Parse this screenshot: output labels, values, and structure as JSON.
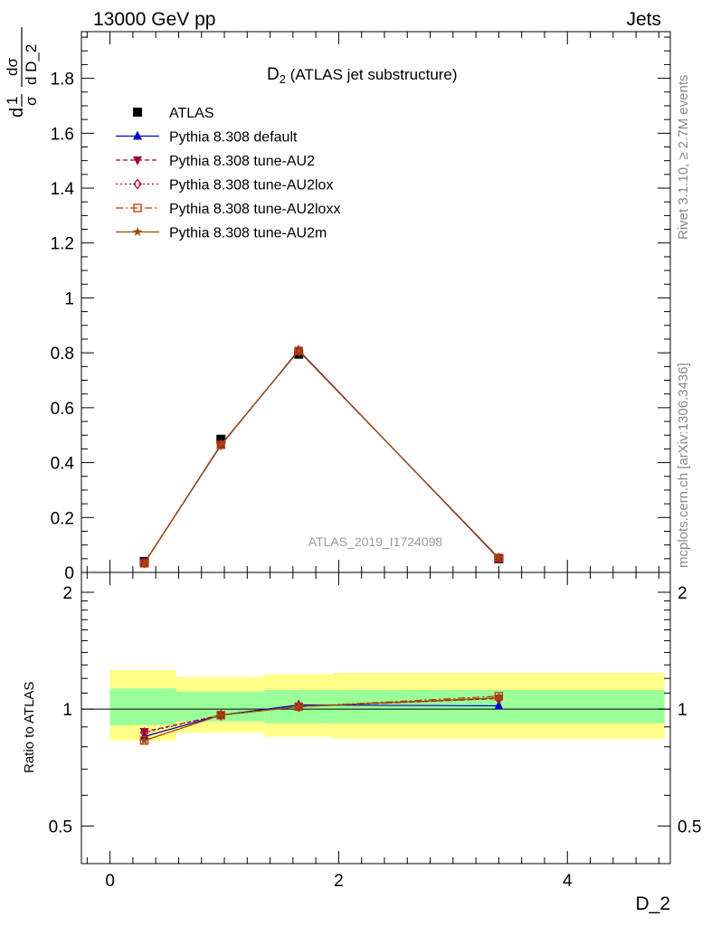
{
  "header": {
    "left": "13000 GeV pp",
    "right": "Jets"
  },
  "side_texts": {
    "rivet": "Rivet 3.1.10, ≥ 2.7M events",
    "mcplots": "mcplots.cern.ch [arXiv:1306.3436]"
  },
  "chart_data": [
    {
      "type": "line",
      "panel": "main",
      "title": "D₂ (ATLAS jet substructure)",
      "title_main": "D",
      "title_sub": "2",
      "title_rest": " (ATLAS jet substructure)",
      "ylabel": "1/σ dσ/d D_2",
      "ylabel_parts": {
        "num1": "1",
        "den1": "σ",
        "num2": "dσ",
        "den2": "d D_2",
        "d": "d"
      },
      "watermark": "ATLAS_2019_I1724098",
      "xlim": [
        -0.25,
        4.9
      ],
      "ylim": [
        0,
        1.97
      ],
      "yticks": [
        0,
        0.2,
        0.4,
        0.6,
        0.8,
        1,
        1.2,
        1.4,
        1.6,
        1.8
      ],
      "ytick_labels": [
        "0",
        "0.2",
        "0.4",
        "0.6",
        "0.8",
        "1",
        "1.2",
        "1.4",
        "1.6",
        "1.8"
      ],
      "x": [
        0.3,
        0.97,
        1.65,
        3.4
      ],
      "series": [
        {
          "name": "ATLAS",
          "values": [
            0.04,
            0.485,
            0.795,
            0.05
          ],
          "color": "#000000",
          "marker": "square-filled",
          "dash": "",
          "is_data": true
        },
        {
          "name": "Pythia 8.308 default",
          "values": [
            0.034,
            0.463,
            0.81,
            0.05
          ],
          "color": "#0000cc",
          "marker": "triangle-filled",
          "dash": ""
        },
        {
          "name": "Pythia 8.308 tune-AU2",
          "values": [
            0.035,
            0.465,
            0.807,
            0.052
          ],
          "color": "#990033",
          "marker": "triangle-down-filled",
          "dash": "5,3"
        },
        {
          "name": "Pythia 8.308 tune-AU2lox",
          "values": [
            0.035,
            0.465,
            0.807,
            0.052
          ],
          "color": "#b00040",
          "marker": "diamond-open",
          "dash": "2,3"
        },
        {
          "name": "Pythia 8.308 tune-AU2loxx",
          "values": [
            0.033,
            0.465,
            0.807,
            0.053
          ],
          "color": "#cc3300",
          "marker": "square-open",
          "dash": "8,3,2,3"
        },
        {
          "name": "Pythia 8.308 tune-AU2m",
          "values": [
            0.033,
            0.465,
            0.807,
            0.053
          ],
          "color": "#994d00",
          "marker": "star",
          "dash": ""
        }
      ]
    },
    {
      "type": "line",
      "panel": "ratio",
      "ylabel": "Ratio to ATLAS",
      "xlabel": "D_2",
      "xlim": [
        -0.25,
        4.9
      ],
      "ylim": [
        0.4,
        2.25
      ],
      "xticks": [
        0,
        2,
        4
      ],
      "xtick_labels": [
        "0",
        "2",
        "4"
      ],
      "yticks": [
        0.5,
        1,
        2
      ],
      "ytick_labels": [
        "0.5",
        "1",
        "2"
      ],
      "bins": [
        {
          "x0": 0.0,
          "x1": 0.58,
          "band1": [
            0.91,
            1.13
          ],
          "band2": [
            0.83,
            1.26
          ]
        },
        {
          "x0": 0.58,
          "x1": 1.35,
          "band1": [
            0.93,
            1.11
          ],
          "band2": [
            0.87,
            1.21
          ]
        },
        {
          "x0": 1.35,
          "x1": 1.95,
          "band1": [
            0.92,
            1.12
          ],
          "band2": [
            0.85,
            1.23
          ]
        },
        {
          "x0": 1.95,
          "x1": 4.85,
          "band1": [
            0.92,
            1.12
          ],
          "band2": [
            0.84,
            1.24
          ]
        }
      ],
      "band_colors": {
        "inner": "#99ff99",
        "outer": "#ffff88"
      },
      "x": [
        0.3,
        0.97,
        1.65,
        3.4
      ],
      "series": [
        {
          "name": "Pythia 8.308 default",
          "values": [
            0.85,
            0.965,
            1.025,
            1.02
          ],
          "color": "#0000cc",
          "marker": "triangle-filled",
          "dash": ""
        },
        {
          "name": "Pythia 8.308 tune-AU2",
          "values": [
            0.875,
            0.965,
            1.015,
            1.065
          ],
          "color": "#990033",
          "marker": "triangle-down-filled",
          "dash": "5,3"
        },
        {
          "name": "Pythia 8.308 tune-AU2lox",
          "values": [
            0.87,
            0.965,
            1.015,
            1.065
          ],
          "color": "#b00040",
          "marker": "diamond-open",
          "dash": "2,3"
        },
        {
          "name": "Pythia 8.308 tune-AU2loxx",
          "values": [
            0.83,
            0.965,
            1.015,
            1.08
          ],
          "color": "#cc3300",
          "marker": "square-open",
          "dash": "8,3,2,3"
        },
        {
          "name": "Pythia 8.308 tune-AU2m",
          "values": [
            0.83,
            0.965,
            1.015,
            1.07
          ],
          "color": "#994d00",
          "marker": "star",
          "dash": ""
        }
      ]
    }
  ]
}
